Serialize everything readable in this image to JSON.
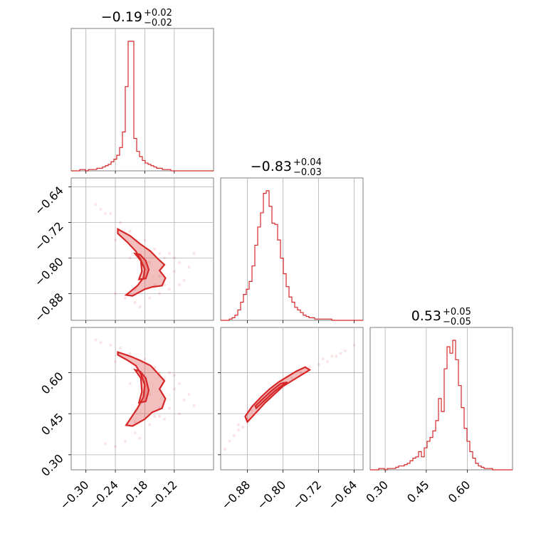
{
  "chart_data": {
    "type": "corner",
    "color": "#d62728",
    "parameters": [
      {
        "range": [
          -0.33,
          -0.04
        ],
        "ticks": [
          -0.3,
          -0.24,
          -0.18,
          -0.12
        ],
        "tick_labels": [
          "−0.30",
          "−0.24",
          "−0.18",
          "−0.12"
        ],
        "title": {
          "main": "−0.19",
          "sup": "+0.02",
          "sub": "−0.02"
        }
      },
      {
        "range": [
          -0.94,
          -0.62
        ],
        "ticks": [
          -0.88,
          -0.8,
          -0.72,
          -0.64
        ],
        "tick_labels": [
          "−0.88",
          "−0.80",
          "−0.72",
          "−0.64"
        ],
        "title": {
          "main": "−0.83",
          "sup": "+0.04",
          "sub": "−0.03"
        }
      },
      {
        "range": [
          0.245,
          0.765
        ],
        "ticks": [
          0.3,
          0.45,
          0.6
        ],
        "tick_labels": [
          "0.30",
          "0.45",
          "0.60"
        ],
        "title": {
          "main": "0.53",
          "sup": "+0.05",
          "sub": "−0.05"
        }
      }
    ],
    "marginals": [
      {
        "param": 0,
        "bin_start": -0.33,
        "bin_width": 0.0058,
        "counts": [
          0,
          0,
          0,
          1,
          1,
          0,
          1,
          1,
          1,
          2,
          2,
          3,
          4,
          5,
          7,
          9,
          12,
          18,
          30,
          65,
          100,
          100,
          25,
          15,
          11,
          8,
          6,
          5,
          4,
          3,
          2,
          2,
          1,
          1,
          1,
          0,
          0,
          0,
          0,
          0,
          0,
          0,
          0,
          0,
          0,
          0,
          0,
          0,
          0,
          0
        ]
      },
      {
        "param": 1,
        "bin_start": -0.94,
        "bin_width": 0.0064,
        "counts": [
          0,
          0,
          0,
          1,
          2,
          4,
          8,
          14,
          20,
          24,
          30,
          42,
          58,
          72,
          83,
          98,
          100,
          88,
          75,
          74,
          62,
          48,
          36,
          26,
          18,
          14,
          10,
          8,
          6,
          4,
          3,
          2,
          2,
          1,
          1,
          1,
          1,
          1,
          1,
          0,
          0,
          0,
          0,
          0,
          0,
          0,
          0,
          0,
          0,
          0
        ]
      },
      {
        "param": 2,
        "bin_start": 0.245,
        "bin_width": 0.0104,
        "counts": [
          0,
          0,
          0,
          1,
          1,
          0,
          1,
          1,
          1,
          2,
          3,
          3,
          4,
          5,
          7,
          9,
          10,
          14,
          10,
          17,
          22,
          25,
          30,
          38,
          55,
          45,
          78,
          95,
          90,
          100,
          85,
          65,
          48,
          32,
          22,
          14,
          9,
          5,
          3,
          2,
          1,
          1,
          1,
          0,
          0,
          0,
          0,
          0,
          0,
          0
        ]
      }
    ],
    "scatter_pairs": [
      {
        "x_param": 0,
        "y_param": 1,
        "outer_contour": [
          [
            -0.235,
            -0.745
          ],
          [
            -0.215,
            -0.765
          ],
          [
            -0.198,
            -0.785
          ],
          [
            -0.188,
            -0.805
          ],
          [
            -0.18,
            -0.825
          ],
          [
            -0.183,
            -0.845
          ],
          [
            -0.195,
            -0.862
          ],
          [
            -0.218,
            -0.883
          ],
          [
            -0.205,
            -0.885
          ],
          [
            -0.18,
            -0.87
          ],
          [
            -0.165,
            -0.865
          ],
          [
            -0.145,
            -0.862
          ],
          [
            -0.138,
            -0.845
          ],
          [
            -0.15,
            -0.828
          ],
          [
            -0.14,
            -0.815
          ],
          [
            -0.155,
            -0.8
          ],
          [
            -0.168,
            -0.785
          ],
          [
            -0.19,
            -0.768
          ],
          [
            -0.21,
            -0.75
          ],
          [
            -0.235,
            -0.735
          ]
        ],
        "inner_contour": [
          [
            -0.2,
            -0.79
          ],
          [
            -0.188,
            -0.806
          ],
          [
            -0.186,
            -0.83
          ],
          [
            -0.192,
            -0.848
          ],
          [
            -0.178,
            -0.846
          ],
          [
            -0.172,
            -0.826
          ],
          [
            -0.178,
            -0.806
          ],
          [
            -0.19,
            -0.792
          ]
        ],
        "samples": [
          [
            -0.23,
            -0.72
          ],
          [
            -0.25,
            -0.7
          ],
          [
            -0.27,
            -0.69
          ],
          [
            -0.21,
            -0.74
          ],
          [
            -0.16,
            -0.78
          ],
          [
            -0.14,
            -0.8
          ],
          [
            -0.12,
            -0.83
          ],
          [
            -0.1,
            -0.85
          ],
          [
            -0.13,
            -0.87
          ],
          [
            -0.15,
            -0.88
          ],
          [
            -0.17,
            -0.89
          ],
          [
            -0.2,
            -0.9
          ],
          [
            -0.22,
            -0.89
          ],
          [
            -0.24,
            -0.88
          ],
          [
            -0.26,
            -0.7
          ],
          [
            -0.28,
            -0.68
          ],
          [
            -0.11,
            -0.81
          ],
          [
            -0.09,
            -0.82
          ],
          [
            -0.08,
            -0.79
          ],
          [
            -0.18,
            -0.76
          ],
          [
            -0.2,
            -0.87
          ],
          [
            -0.16,
            -0.86
          ],
          [
            -0.15,
            -0.84
          ],
          [
            -0.14,
            -0.86
          ],
          [
            -0.19,
            -0.91
          ],
          [
            -0.24,
            -0.76
          ],
          [
            -0.12,
            -0.8
          ],
          [
            -0.11,
            -0.86
          ],
          [
            -0.13,
            -0.79
          ],
          [
            -0.21,
            -0.8
          ],
          [
            -0.17,
            -0.81
          ],
          [
            -0.15,
            -0.79
          ]
        ]
      },
      {
        "x_param": 0,
        "y_param": 2,
        "outer_contour": [
          [
            -0.235,
            0.665
          ],
          [
            -0.215,
            0.645
          ],
          [
            -0.198,
            0.625
          ],
          [
            -0.188,
            0.595
          ],
          [
            -0.18,
            0.555
          ],
          [
            -0.183,
            0.51
          ],
          [
            -0.195,
            0.47
          ],
          [
            -0.218,
            0.408
          ],
          [
            -0.205,
            0.405
          ],
          [
            -0.18,
            0.43
          ],
          [
            -0.165,
            0.455
          ],
          [
            -0.145,
            0.47
          ],
          [
            -0.138,
            0.505
          ],
          [
            -0.15,
            0.54
          ],
          [
            -0.14,
            0.57
          ],
          [
            -0.155,
            0.6
          ],
          [
            -0.168,
            0.625
          ],
          [
            -0.19,
            0.645
          ],
          [
            -0.21,
            0.66
          ],
          [
            -0.235,
            0.675
          ]
        ],
        "inner_contour": [
          [
            -0.2,
            0.61
          ],
          [
            -0.188,
            0.58
          ],
          [
            -0.186,
            0.53
          ],
          [
            -0.192,
            0.49
          ],
          [
            -0.178,
            0.495
          ],
          [
            -0.172,
            0.535
          ],
          [
            -0.178,
            0.58
          ],
          [
            -0.19,
            0.605
          ]
        ],
        "samples": [
          [
            -0.23,
            0.69
          ],
          [
            -0.25,
            0.7
          ],
          [
            -0.27,
            0.71
          ],
          [
            -0.21,
            0.67
          ],
          [
            -0.16,
            0.62
          ],
          [
            -0.14,
            0.58
          ],
          [
            -0.12,
            0.54
          ],
          [
            -0.1,
            0.5
          ],
          [
            -0.13,
            0.47
          ],
          [
            -0.15,
            0.44
          ],
          [
            -0.17,
            0.41
          ],
          [
            -0.2,
            0.38
          ],
          [
            -0.22,
            0.35
          ],
          [
            -0.24,
            0.33
          ],
          [
            -0.26,
            0.34
          ],
          [
            -0.28,
            0.72
          ],
          [
            -0.11,
            0.56
          ],
          [
            -0.09,
            0.52
          ],
          [
            -0.08,
            0.48
          ],
          [
            -0.18,
            0.65
          ],
          [
            -0.2,
            0.42
          ],
          [
            -0.16,
            0.44
          ],
          [
            -0.15,
            0.47
          ],
          [
            -0.14,
            0.43
          ],
          [
            -0.19,
            0.36
          ],
          [
            -0.24,
            0.64
          ],
          [
            -0.12,
            0.59
          ],
          [
            -0.11,
            0.45
          ],
          [
            -0.13,
            0.6
          ],
          [
            -0.21,
            0.56
          ],
          [
            -0.17,
            0.52
          ],
          [
            -0.15,
            0.6
          ]
        ]
      },
      {
        "x_param": 1,
        "y_param": 2,
        "outer_contour": [
          [
            -0.88,
            0.42
          ],
          [
            -0.86,
            0.455
          ],
          [
            -0.84,
            0.49
          ],
          [
            -0.82,
            0.52
          ],
          [
            -0.8,
            0.55
          ],
          [
            -0.78,
            0.57
          ],
          [
            -0.76,
            0.59
          ],
          [
            -0.74,
            0.61
          ],
          [
            -0.75,
            0.62
          ],
          [
            -0.77,
            0.605
          ],
          [
            -0.79,
            0.585
          ],
          [
            -0.81,
            0.565
          ],
          [
            -0.83,
            0.54
          ],
          [
            -0.85,
            0.51
          ],
          [
            -0.87,
            0.475
          ],
          [
            -0.885,
            0.44
          ]
        ],
        "inner_contour": [
          [
            -0.86,
            0.47
          ],
          [
            -0.84,
            0.5
          ],
          [
            -0.82,
            0.53
          ],
          [
            -0.8,
            0.555
          ],
          [
            -0.79,
            0.565
          ],
          [
            -0.805,
            0.56
          ],
          [
            -0.825,
            0.535
          ],
          [
            -0.845,
            0.505
          ],
          [
            -0.862,
            0.478
          ]
        ],
        "samples": [
          [
            -0.9,
            0.39
          ],
          [
            -0.91,
            0.37
          ],
          [
            -0.92,
            0.35
          ],
          [
            -0.93,
            0.32
          ],
          [
            -0.9,
            0.41
          ],
          [
            -0.7,
            0.64
          ],
          [
            -0.68,
            0.66
          ],
          [
            -0.66,
            0.68
          ],
          [
            -0.64,
            0.7
          ],
          [
            -0.72,
            0.63
          ],
          [
            -0.78,
            0.58
          ],
          [
            -0.82,
            0.54
          ],
          [
            -0.86,
            0.48
          ],
          [
            -0.88,
            0.43
          ],
          [
            -0.89,
            0.4
          ],
          [
            -0.87,
            0.46
          ],
          [
            -0.85,
            0.5
          ],
          [
            -0.83,
            0.52
          ],
          [
            -0.81,
            0.55
          ],
          [
            -0.76,
            0.6
          ],
          [
            -0.74,
            0.62
          ],
          [
            -0.71,
            0.65
          ],
          [
            -0.69,
            0.66
          ],
          [
            -0.67,
            0.67
          ]
        ]
      }
    ]
  }
}
